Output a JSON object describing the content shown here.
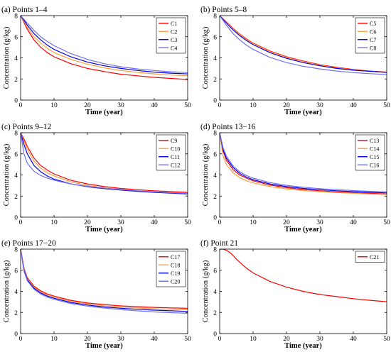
{
  "chart_data": [
    {
      "type": "line",
      "title": "(a) Points 1–4",
      "xlabel": "Time (year)",
      "ylabel": "Concentration (g/kg)",
      "xlim": [
        0,
        50
      ],
      "ylim": [
        0,
        8
      ],
      "x_ticks": [
        "0",
        "10",
        "20",
        "30",
        "40",
        "50"
      ],
      "y_ticks": [
        "0",
        "2",
        "4",
        "6",
        "8"
      ],
      "grid": false,
      "legend_position": "top-right",
      "x": [
        0,
        2,
        4,
        6,
        8,
        10,
        15,
        20,
        25,
        30,
        35,
        40,
        45,
        50
      ],
      "series": [
        {
          "name": "C1",
          "color": "#ff0000",
          "values": [
            8.0,
            6.7,
            5.7,
            5.0,
            4.5,
            4.1,
            3.45,
            3.0,
            2.7,
            2.45,
            2.3,
            2.15,
            2.05,
            1.95
          ]
        },
        {
          "name": "C2",
          "color": "#ffa040",
          "values": [
            8.0,
            6.9,
            6.0,
            5.4,
            4.9,
            4.5,
            3.85,
            3.4,
            3.05,
            2.8,
            2.62,
            2.48,
            2.37,
            2.3
          ]
        },
        {
          "name": "C3",
          "color": "#0000ee",
          "values": [
            8.0,
            7.1,
            6.3,
            5.7,
            5.2,
            4.8,
            4.1,
            3.6,
            3.25,
            3.0,
            2.8,
            2.65,
            2.55,
            2.48
          ]
        },
        {
          "name": "C4",
          "color": "#7070f0",
          "values": [
            8.0,
            7.3,
            6.6,
            6.0,
            5.55,
            5.15,
            4.4,
            3.85,
            3.45,
            3.15,
            2.95,
            2.8,
            2.68,
            2.6
          ]
        }
      ]
    },
    {
      "type": "line",
      "title": "(b) Points 5–8",
      "xlabel": "Time (year)",
      "ylabel": "Concentration (g/kg)",
      "xlim": [
        0,
        50
      ],
      "ylim": [
        0,
        8
      ],
      "x_ticks": [
        "0",
        "10",
        "20",
        "30",
        "40",
        "50"
      ],
      "y_ticks": [
        "0",
        "2",
        "4",
        "6",
        "8"
      ],
      "grid": false,
      "legend_position": "top-right",
      "x": [
        0,
        2,
        4,
        6,
        8,
        10,
        15,
        20,
        25,
        30,
        35,
        40,
        45,
        50
      ],
      "series": [
        {
          "name": "C5",
          "color": "#ff0000",
          "values": [
            8.0,
            7.4,
            6.8,
            6.25,
            5.8,
            5.4,
            4.65,
            4.1,
            3.7,
            3.35,
            3.1,
            2.9,
            2.75,
            2.65
          ]
        },
        {
          "name": "C6",
          "color": "#ffa040",
          "values": [
            8.0,
            7.35,
            6.75,
            6.2,
            5.75,
            5.35,
            4.6,
            4.05,
            3.65,
            3.3,
            3.05,
            2.87,
            2.73,
            2.62
          ]
        },
        {
          "name": "C7",
          "color": "#0000ee",
          "values": [
            8.0,
            7.3,
            6.65,
            6.1,
            5.65,
            5.25,
            4.5,
            3.95,
            3.55,
            3.25,
            3.0,
            2.83,
            2.72,
            2.62
          ]
        },
        {
          "name": "C8",
          "color": "#7070f0",
          "values": [
            8.0,
            7.1,
            6.3,
            5.7,
            5.2,
            4.8,
            4.05,
            3.55,
            3.2,
            2.95,
            2.75,
            2.6,
            2.5,
            2.42
          ]
        }
      ]
    },
    {
      "type": "line",
      "title": "(c) Points 9–12",
      "xlabel": "Time (year)",
      "ylabel": "Concentration (g/kg)",
      "xlim": [
        0,
        50
      ],
      "ylim": [
        0,
        8
      ],
      "x_ticks": [
        "0",
        "10",
        "20",
        "30",
        "40",
        "50"
      ],
      "y_ticks": [
        "0",
        "2",
        "4",
        "6",
        "8"
      ],
      "grid": false,
      "legend_position": "top-right",
      "x": [
        0,
        1,
        2,
        4,
        6,
        8,
        10,
        15,
        20,
        25,
        30,
        35,
        40,
        45,
        50
      ],
      "series": [
        {
          "name": "C9",
          "color": "#ff0000",
          "values": [
            8.0,
            7.4,
            6.7,
            5.6,
            4.9,
            4.45,
            4.1,
            3.5,
            3.15,
            2.9,
            2.72,
            2.6,
            2.5,
            2.42,
            2.35
          ]
        },
        {
          "name": "C10",
          "color": "#ffa040",
          "values": [
            8.0,
            7.2,
            6.4,
            5.3,
            4.65,
            4.2,
            3.9,
            3.35,
            3.0,
            2.78,
            2.62,
            2.5,
            2.4,
            2.33,
            2.27
          ]
        },
        {
          "name": "C11",
          "color": "#0000ee",
          "values": [
            8.0,
            6.9,
            6.0,
            4.9,
            4.3,
            3.9,
            3.6,
            3.15,
            2.88,
            2.7,
            2.57,
            2.45,
            2.35,
            2.27,
            2.2
          ]
        },
        {
          "name": "C12",
          "color": "#7070f0",
          "values": [
            8.0,
            6.0,
            5.1,
            4.35,
            3.95,
            3.7,
            3.5,
            3.15,
            2.92,
            2.75,
            2.62,
            2.5,
            2.4,
            2.32,
            2.25
          ]
        }
      ]
    },
    {
      "type": "line",
      "title": "(d) Points 13−16",
      "xlabel": "Time (year)",
      "ylabel": "Concentration (g/kg)",
      "xlim": [
        0,
        50
      ],
      "ylim": [
        0,
        8
      ],
      "x_ticks": [
        "0",
        "10",
        "20",
        "30",
        "40",
        "50"
      ],
      "y_ticks": [
        "0",
        "2",
        "4",
        "6",
        "8"
      ],
      "grid": false,
      "legend_position": "top-right",
      "x": [
        0,
        1,
        2,
        4,
        6,
        8,
        10,
        15,
        20,
        25,
        30,
        35,
        40,
        45,
        50
      ],
      "series": [
        {
          "name": "C13",
          "color": "#ff0000",
          "values": [
            8.0,
            6.3,
            5.4,
            4.5,
            4.0,
            3.7,
            3.45,
            3.05,
            2.8,
            2.62,
            2.5,
            2.4,
            2.32,
            2.26,
            2.2
          ]
        },
        {
          "name": "C14",
          "color": "#ffa040",
          "values": [
            8.0,
            5.8,
            5.0,
            4.2,
            3.75,
            3.45,
            3.25,
            2.9,
            2.68,
            2.53,
            2.42,
            2.33,
            2.26,
            2.2,
            2.15
          ]
        },
        {
          "name": "C15",
          "color": "#0000ee",
          "values": [
            8.0,
            6.4,
            5.6,
            4.7,
            4.15,
            3.8,
            3.55,
            3.15,
            2.9,
            2.72,
            2.6,
            2.5,
            2.42,
            2.35,
            2.3
          ]
        },
        {
          "name": "C16",
          "color": "#7070f0",
          "values": [
            8.0,
            6.6,
            5.8,
            4.85,
            4.3,
            3.95,
            3.7,
            3.28,
            3.02,
            2.84,
            2.7,
            2.6,
            2.52,
            2.45,
            2.4
          ]
        }
      ]
    },
    {
      "type": "line",
      "title": "(e) Points 17−20",
      "xlabel": "Time (year)",
      "ylabel": "Concentration (g/kg)",
      "xlim": [
        0,
        50
      ],
      "ylim": [
        0,
        8
      ],
      "x_ticks": [
        "0",
        "10",
        "20",
        "30",
        "40",
        "50"
      ],
      "y_ticks": [
        "0",
        "2",
        "4",
        "6",
        "8"
      ],
      "grid": false,
      "legend_position": "top-right",
      "x": [
        0,
        1,
        2,
        4,
        6,
        8,
        10,
        15,
        20,
        25,
        30,
        35,
        40,
        45,
        50
      ],
      "series": [
        {
          "name": "C17",
          "color": "#ff0000",
          "values": [
            8.0,
            6.2,
            5.3,
            4.5,
            4.05,
            3.75,
            3.55,
            3.15,
            2.9,
            2.75,
            2.62,
            2.55,
            2.48,
            2.43,
            2.4
          ]
        },
        {
          "name": "C18",
          "color": "#ffa040",
          "values": [
            8.0,
            6.1,
            5.2,
            4.4,
            3.95,
            3.65,
            3.45,
            3.05,
            2.8,
            2.63,
            2.5,
            2.42,
            2.35,
            2.3,
            2.25
          ]
        },
        {
          "name": "C19",
          "color": "#0000ee",
          "values": [
            8.0,
            6.0,
            5.1,
            4.3,
            3.85,
            3.55,
            3.35,
            2.95,
            2.7,
            2.52,
            2.4,
            2.3,
            2.22,
            2.16,
            2.1
          ]
        },
        {
          "name": "C20",
          "color": "#7070f0",
          "values": [
            8.0,
            5.9,
            5.0,
            4.2,
            3.75,
            3.45,
            3.25,
            2.85,
            2.6,
            2.42,
            2.28,
            2.15,
            2.05,
            1.98,
            1.92
          ]
        }
      ]
    },
    {
      "type": "line",
      "title": "(f) Point 21",
      "xlabel": "Time (year)",
      "ylabel": "Concentration (g/kg)",
      "xlim": [
        0,
        50
      ],
      "ylim": [
        0,
        8
      ],
      "x_ticks": [
        "0",
        "10",
        "20",
        "30",
        "40",
        "50"
      ],
      "y_ticks": [
        "0",
        "2",
        "4",
        "6",
        "8"
      ],
      "grid": false,
      "legend_position": "top-right",
      "x": [
        0,
        1,
        2,
        3,
        4,
        5,
        6,
        8,
        10,
        15,
        20,
        25,
        30,
        35,
        40,
        45,
        50
      ],
      "series": [
        {
          "name": "C21",
          "color": "#ff0000",
          "values": [
            8.0,
            8.0,
            7.9,
            7.7,
            7.4,
            7.05,
            6.75,
            6.2,
            5.75,
            4.95,
            4.4,
            4.0,
            3.7,
            3.5,
            3.3,
            3.15,
            3.02
          ]
        }
      ]
    }
  ]
}
